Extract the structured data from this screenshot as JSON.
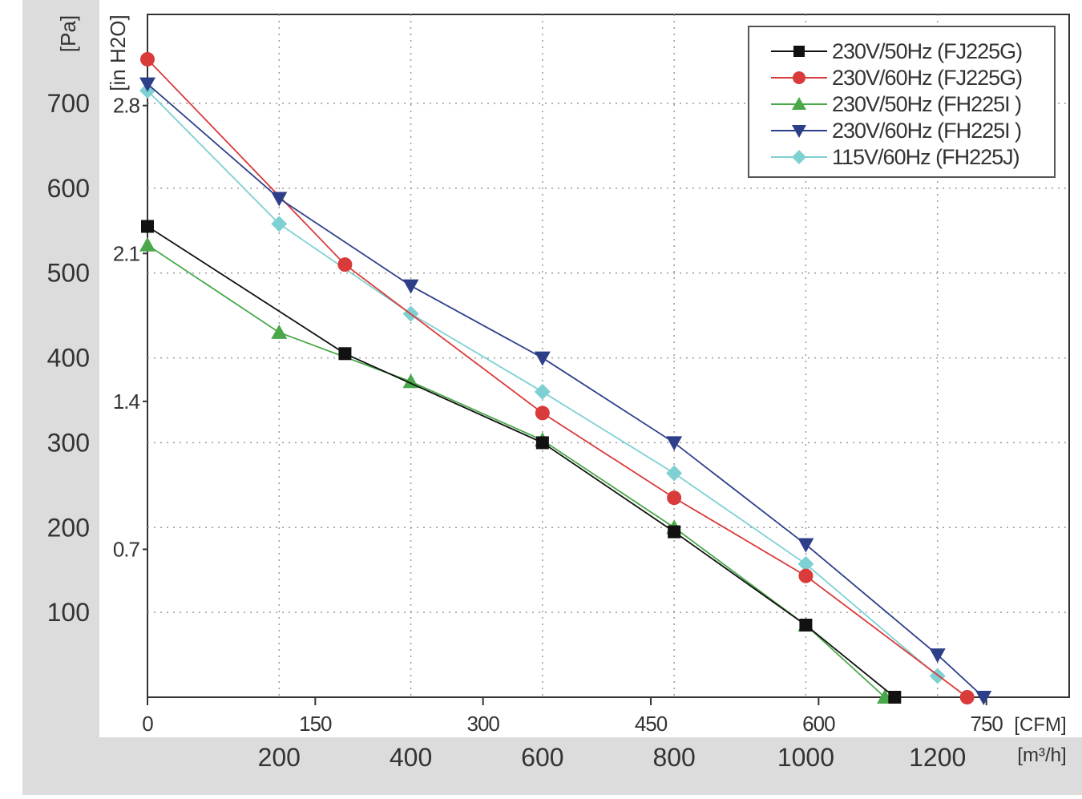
{
  "colors": {
    "frame_bg": "#dcdcdc",
    "plot_bg": "#ffffff",
    "grid": "#9a9a9a",
    "axis": "#333333"
  },
  "chart_data": {
    "type": "line",
    "grid": true,
    "legend_placement": "top-right",
    "x_unit_primary": "[m³/h]",
    "x_unit_secondary": "[CFM]",
    "y_unit_primary": "[Pa]",
    "y_unit_secondary": "[in H2O]",
    "x_primary_ticks": [
      "200",
      "400",
      "600",
      "800",
      "1000",
      "1200"
    ],
    "x_primary_tick_values": [
      200,
      400,
      600,
      800,
      1000,
      1200
    ],
    "x_secondary_ticks": [
      "0",
      "150",
      "300",
      "450",
      "600",
      "750"
    ],
    "x_secondary_tick_values": [
      0,
      150,
      300,
      450,
      600,
      750
    ],
    "y_primary_ticks": [
      "100",
      "200",
      "300",
      "400",
      "500",
      "600",
      "700"
    ],
    "y_primary_tick_values": [
      100,
      200,
      300,
      400,
      500,
      600,
      700
    ],
    "y_secondary_ticks": [
      "0.7",
      "1.4",
      "2.1",
      "2.8"
    ],
    "y_secondary_tick_values": [
      0.7,
      1.4,
      2.1,
      2.8
    ],
    "xlim": [
      0,
      1400
    ],
    "ylim": [
      0,
      800
    ],
    "series": [
      {
        "name": "230V/50Hz (FJ225G)",
        "color": "#111111",
        "marker": "square",
        "x": [
          0,
          300,
          600,
          800,
          1000,
          1135
        ],
        "y": [
          555,
          405,
          300,
          195,
          85,
          0
        ]
      },
      {
        "name": "230V/60Hz (FJ225G)",
        "color": "#d93a3a",
        "marker": "circle",
        "x": [
          0,
          300,
          600,
          800,
          1000,
          1245
        ],
        "y": [
          752,
          510,
          335,
          235,
          143,
          0
        ]
      },
      {
        "name": "230V/50Hz (FH225I )",
        "color": "#4aa84a",
        "marker": "triangle-up",
        "x": [
          0,
          200,
          400,
          600,
          800,
          1000,
          1120
        ],
        "y": [
          533,
          430,
          372,
          303,
          200,
          85,
          0
        ]
      },
      {
        "name": "230V/60Hz (FH225I )",
        "color": "#2e3f8a",
        "marker": "triangle-down",
        "x": [
          0,
          200,
          400,
          600,
          800,
          1000,
          1200,
          1270
        ],
        "y": [
          723,
          588,
          485,
          400,
          300,
          180,
          50,
          0
        ]
      },
      {
        "name": "115V/60Hz (FH225J)",
        "color": "#7fd0d3",
        "marker": "diamond",
        "x": [
          0,
          200,
          400,
          600,
          800,
          1000,
          1200
        ],
        "y": [
          715,
          558,
          452,
          360,
          264,
          157,
          25
        ]
      }
    ]
  }
}
